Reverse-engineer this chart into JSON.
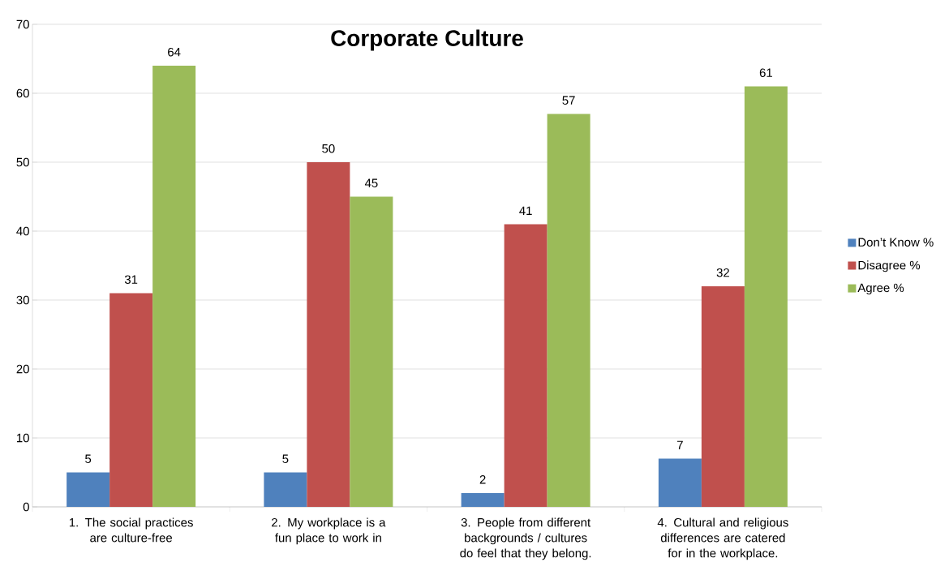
{
  "chart_data": {
    "type": "bar",
    "title": "Corporate Culture",
    "categories": [
      "1. The social practices are culture-free",
      "2. My workplace is a fun place to work in",
      "3. People from different backgrounds / cultures do feel  that they belong.",
      "4. Cultural and religious differences are catered for in the   workplace."
    ],
    "series": [
      {
        "name": "Don’t Know %",
        "color": "#4f81bd",
        "values": [
          5,
          5,
          2,
          7
        ]
      },
      {
        "name": "Disagree %",
        "color": "#c0504d",
        "values": [
          31,
          50,
          41,
          32
        ]
      },
      {
        "name": "Agree %",
        "color": "#9bbb59",
        "values": [
          64,
          45,
          57,
          61
        ]
      }
    ],
    "ylim": [
      0,
      70
    ],
    "yticks": [
      0,
      10,
      20,
      30,
      40,
      50,
      60,
      70
    ],
    "grid": "y",
    "legend": "right",
    "data_labels": true
  }
}
